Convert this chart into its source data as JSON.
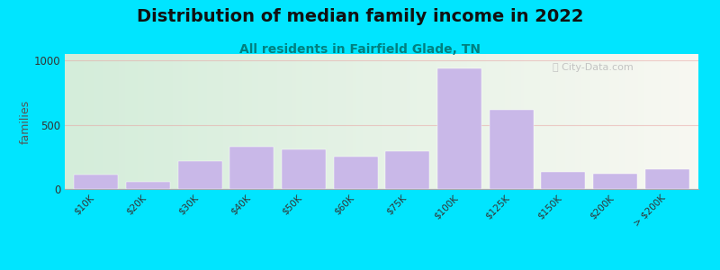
{
  "title": "Distribution of median family income in 2022",
  "subtitle": "All residents in Fairfield Glade, TN",
  "ylabel": "families",
  "categories": [
    "$10K",
    "$20K",
    "$30K",
    "$40K",
    "$50K",
    "$60K",
    "$75K",
    "$100K",
    "$125K",
    "$150K",
    "$200K",
    "> $200K"
  ],
  "values": [
    115,
    55,
    215,
    330,
    310,
    255,
    295,
    940,
    615,
    130,
    120,
    155
  ],
  "bar_color": "#c9b8e8",
  "bg_outer": "#00e5ff",
  "grid_color": "#e8a0a0",
  "grid_alpha": 0.5,
  "yticks": [
    0,
    500,
    1000
  ],
  "ylim": [
    0,
    1050
  ],
  "title_fontsize": 14,
  "subtitle_fontsize": 10,
  "subtitle_color": "#008080",
  "ylabel_fontsize": 9,
  "watermark": "City-Data.com"
}
